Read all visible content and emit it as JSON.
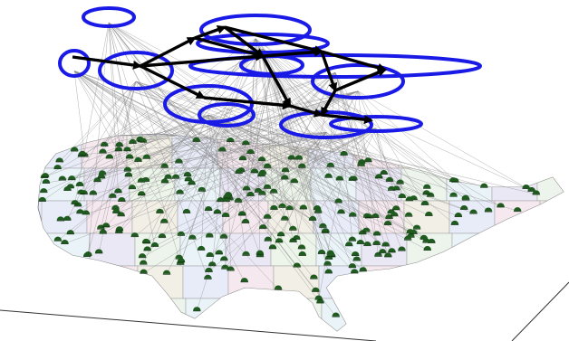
{
  "scene": {
    "base_plane_color": "#333333",
    "map_outline_color": "#777777",
    "state_fill_colors": [
      "#e8ecf8",
      "#eef6ea",
      "#f7e9ee",
      "#eaf4f8",
      "#f3f0e4",
      "#ece8f6"
    ],
    "connector_line_color": "#8a8a8a",
    "site_marker_color": "#1f5a1f",
    "site_marker_shadow_color": "#0d2e0d",
    "cluster_ring_color": "#1a1ae6",
    "backbone_arrow_color": "#000000",
    "site_marker_icon": "half-disc-icon",
    "cluster_count": 12,
    "backbone_link_count": 17
  }
}
